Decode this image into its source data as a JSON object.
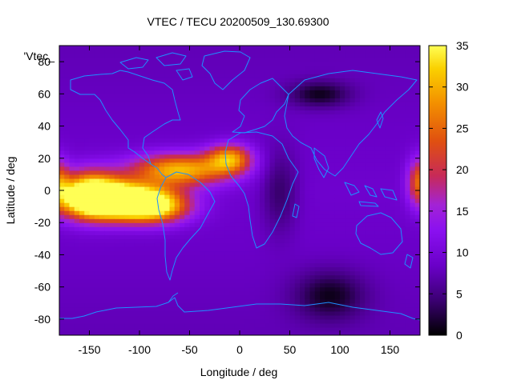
{
  "chart_data": {
    "type": "heatmap",
    "title": "VTEC / TECU 20200509_130.69300",
    "xlabel": "Longitude / deg",
    "ylabel": "Latitude / deg",
    "legend_key": "'Vtec_",
    "xlim": [
      -180,
      180
    ],
    "ylim": [
      -90,
      90
    ],
    "x_ticks": [
      -150,
      -100,
      -50,
      0,
      50,
      100,
      150
    ],
    "y_ticks": [
      -80,
      -60,
      -40,
      -20,
      0,
      20,
      40,
      60,
      80
    ],
    "colorbar": {
      "range": [
        0,
        35
      ],
      "ticks": [
        0,
        5,
        10,
        15,
        20,
        25,
        30,
        35
      ],
      "palette": [
        "#000000",
        "#3b0072",
        "#6a00c8",
        "#8a10f0",
        "#a323d6",
        "#c72a58",
        "#e05010",
        "#f38f00",
        "#fad000",
        "#ffff55"
      ]
    },
    "background_value": 9,
    "features": [
      {
        "name": "equatorial-anomaly-main",
        "lon": -120,
        "lat": -6,
        "peak_tecu": 34,
        "width_lon": 45,
        "width_lat": 11
      },
      {
        "name": "equatorial-anomaly-west",
        "lon": -150,
        "lat": -2,
        "peak_tecu": 26,
        "width_lon": 30,
        "width_lat": 14
      },
      {
        "name": "northern-crest-atlantic",
        "lon": -60,
        "lat": 13,
        "peak_tecu": 22,
        "width_lon": 48,
        "width_lat": 10
      },
      {
        "name": "northern-crest-east",
        "lon": -10,
        "lat": 20,
        "peak_tecu": 19,
        "width_lon": 22,
        "width_lat": 9
      },
      {
        "name": "southern-crest",
        "lon": -85,
        "lat": -10,
        "peak_tecu": 20,
        "width_lon": 35,
        "width_lat": 10
      },
      {
        "name": "dateline-east-edge",
        "lon": 180,
        "lat": 5,
        "peak_tecu": 17,
        "width_lon": 12,
        "width_lat": 15
      },
      {
        "name": "dateline-west-edge",
        "lon": -180,
        "lat": 5,
        "peak_tecu": 12,
        "width_lon": 10,
        "width_lat": 15
      },
      {
        "name": "night-minimum-asia",
        "lon": 80,
        "lat": 60,
        "peak_tecu": -7,
        "width_lon": 30,
        "width_lat": 8
      },
      {
        "name": "night-minimum-africa",
        "lon": 40,
        "lat": 0,
        "peak_tecu": -5,
        "width_lon": 18,
        "width_lat": 25
      },
      {
        "name": "night-minimum-south",
        "lon": 90,
        "lat": -65,
        "peak_tecu": -7,
        "width_lon": 35,
        "width_lat": 15
      }
    ],
    "coastline_color": "#1e90ff"
  }
}
